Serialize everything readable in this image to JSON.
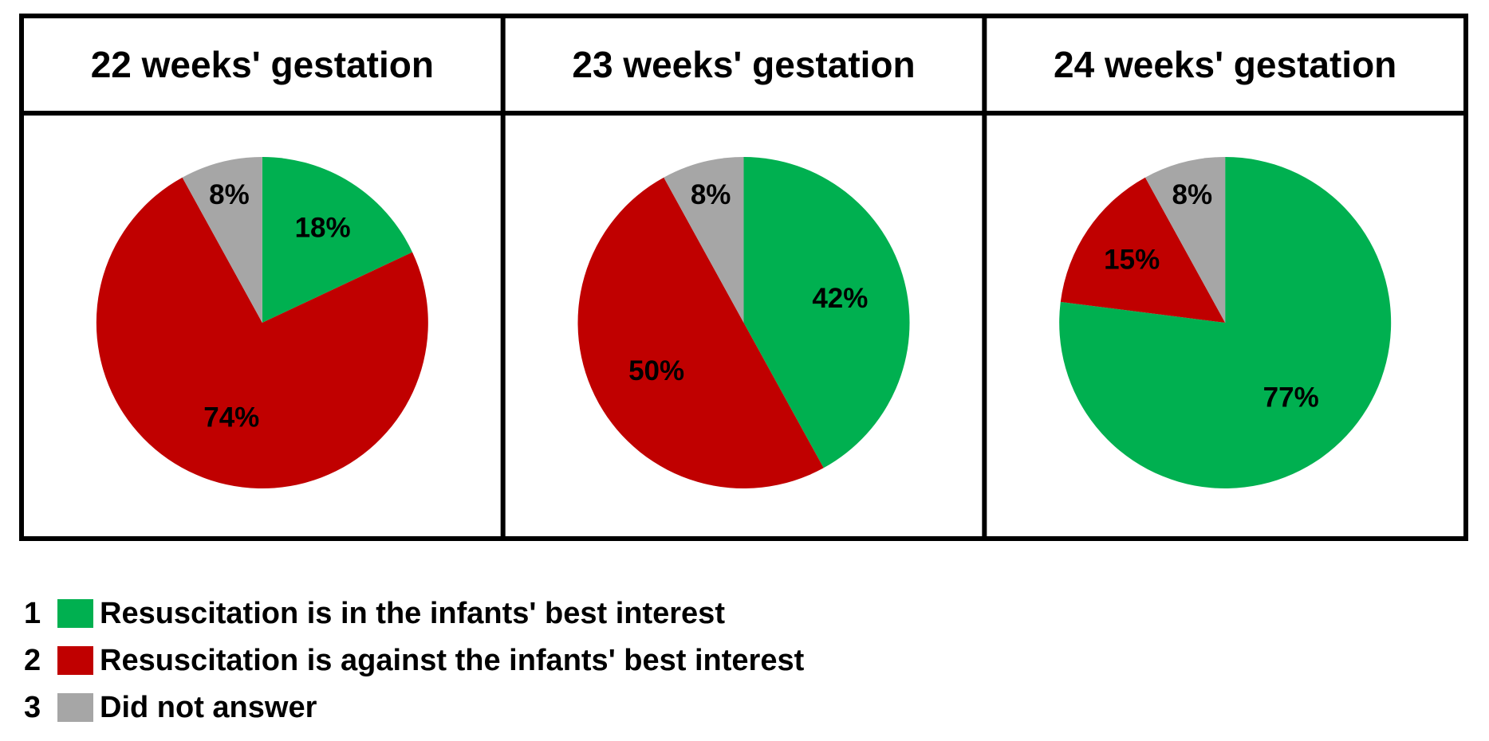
{
  "chart_data": [
    {
      "type": "pie",
      "title": "22 weeks' gestation",
      "categories": [
        "1",
        "2",
        "3"
      ],
      "values": [
        18,
        74,
        8
      ],
      "labels": [
        "18%",
        "74%",
        "8%"
      ]
    },
    {
      "type": "pie",
      "title": "23 weeks' gestation",
      "categories": [
        "1",
        "2",
        "3"
      ],
      "values": [
        42,
        50,
        8
      ],
      "labels": [
        "42%",
        "50%",
        "8%"
      ]
    },
    {
      "type": "pie",
      "title": "24 weeks' gestation",
      "categories": [
        "1",
        "2",
        "3"
      ],
      "values": [
        77,
        15,
        8
      ],
      "labels": [
        "77%",
        "15%",
        "8%"
      ]
    }
  ],
  "legend": {
    "placement": "bottom-left",
    "items": [
      {
        "number": "1",
        "label": "Resuscitation is in the infants' best interest",
        "color": "#00b050"
      },
      {
        "number": "2",
        "label": "Resuscitation is against the infants' best interest",
        "color": "#c00000"
      },
      {
        "number": "3",
        "label": "Did not answer",
        "color": "#a6a6a6"
      }
    ]
  }
}
